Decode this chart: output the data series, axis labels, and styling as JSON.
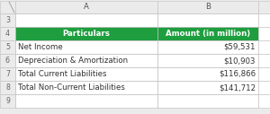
{
  "col_a_header": "Particulars",
  "col_b_header": "Amount (in million)",
  "rows": [
    [
      "Net Income",
      "$59,531"
    ],
    [
      "Depreciation & Amortization",
      "$10,903"
    ],
    [
      "Total Current Liabilities",
      "$116,866"
    ],
    [
      "Total Non-Current Liabilities",
      "$141,712"
    ]
  ],
  "header_bg": "#1E9E3E",
  "header_fg": "#FFFFFF",
  "row_bg": "#FFFFFF",
  "row_fg": "#333333",
  "grid_color": "#C0C0C0",
  "row_num_bg": "#EBEBEB",
  "row_num_fg": "#666666",
  "col_header_bg": "#EBEBEB",
  "col_header_fg": "#555555",
  "fig_bg": "#EBEBEB",
  "row_numbers": [
    "3",
    "4",
    "5",
    "6",
    "7",
    "8",
    "9"
  ],
  "col_labels": [
    "A",
    "B"
  ],
  "font_size": 6.2,
  "header_font_size": 6.2
}
